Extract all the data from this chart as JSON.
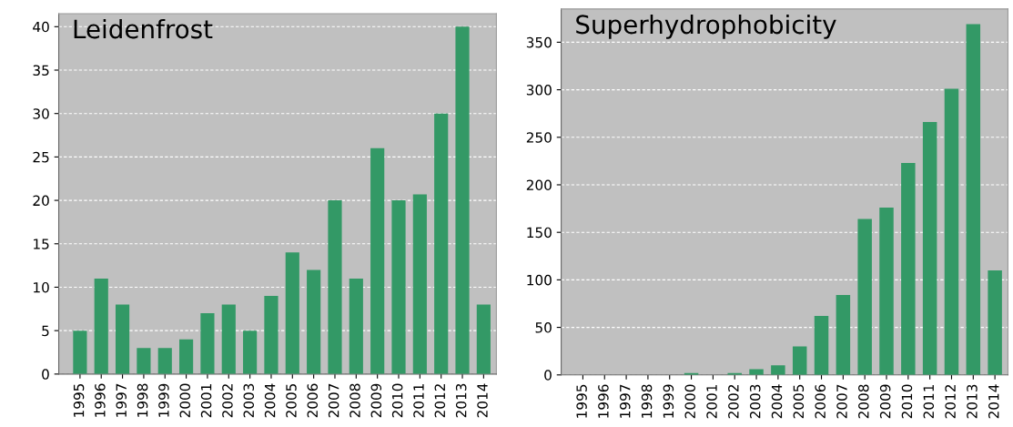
{
  "chart_data": [
    {
      "type": "bar",
      "title": "Leidenfrost",
      "categories": [
        "1995",
        "1996",
        "1997",
        "1998",
        "1999",
        "2000",
        "2001",
        "2002",
        "2003",
        "2004",
        "2005",
        "2006",
        "2007",
        "2008",
        "2009",
        "2010",
        "2011",
        "2012",
        "2013",
        "2014"
      ],
      "values": [
        5,
        11,
        8,
        3,
        3,
        4,
        7,
        8,
        5,
        9,
        14,
        12,
        20,
        11,
        26,
        20,
        20.7,
        30,
        40,
        8
      ],
      "color": "#339966",
      "ylim": [
        0,
        41.5
      ],
      "yticks": [
        0,
        5,
        10,
        15,
        20,
        25,
        30,
        35,
        40
      ],
      "grid": "y"
    },
    {
      "type": "bar",
      "title": "Superhydrophobicity",
      "categories": [
        "1995",
        "1996",
        "1997",
        "1998",
        "1999",
        "2000",
        "2001",
        "2002",
        "2003",
        "2004",
        "2005",
        "2006",
        "2007",
        "2008",
        "2009",
        "2010",
        "2011",
        "2012",
        "2013",
        "2014"
      ],
      "values": [
        0,
        0,
        0,
        0,
        0,
        2,
        0,
        2,
        6,
        10,
        30,
        62,
        84,
        164,
        176,
        223,
        266,
        301,
        369,
        110
      ],
      "color": "#339966",
      "ylim": [
        0,
        385
      ],
      "yticks": [
        0,
        50,
        100,
        150,
        200,
        250,
        300,
        350
      ],
      "grid": "y"
    }
  ]
}
